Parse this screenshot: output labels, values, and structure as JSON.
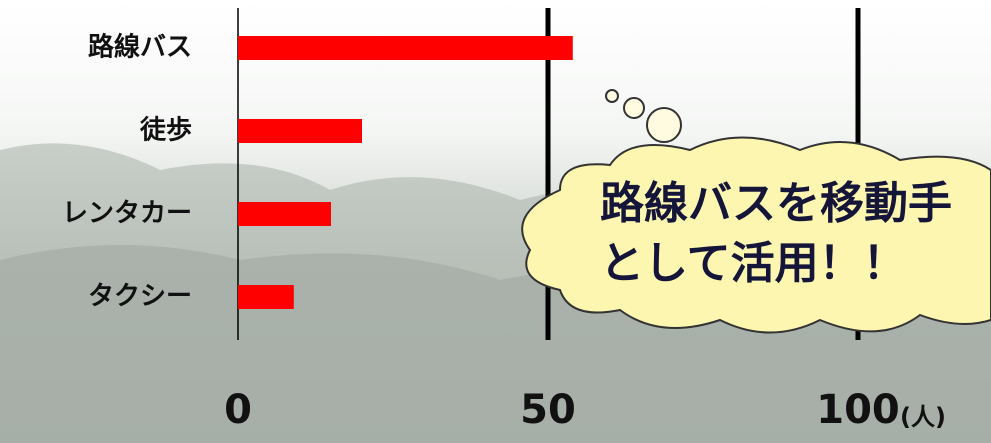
{
  "chart_data": {
    "type": "bar",
    "orientation": "horizontal",
    "categories": [
      "路線バス",
      "徒歩",
      "レンタカー",
      "タクシー"
    ],
    "values": [
      54,
      20,
      15,
      9
    ],
    "color": "#ff0000",
    "xlim": [
      0,
      120
    ],
    "xticks": [
      0,
      50,
      100
    ],
    "grid": true,
    "x_unit": "(人)",
    "annotation": [
      "路線バスを移動手",
      "として活用！！"
    ]
  }
}
